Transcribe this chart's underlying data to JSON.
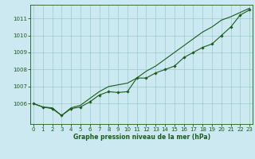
{
  "title": "Graphe pression niveau de la mer (hPa)",
  "background_color": "#cce8f0",
  "line_color": "#1a5c1a",
  "grid_color": "#99cccc",
  "x_values": [
    0,
    1,
    2,
    3,
    4,
    5,
    6,
    7,
    8,
    9,
    10,
    11,
    12,
    13,
    14,
    15,
    16,
    17,
    18,
    19,
    20,
    21,
    22,
    23
  ],
  "series_dots": [
    1006.0,
    1005.8,
    1005.7,
    1005.3,
    1005.7,
    1005.8,
    1006.1,
    1006.5,
    1006.7,
    1006.65,
    1006.7,
    1007.5,
    1007.5,
    1007.8,
    1008.0,
    1008.2,
    1008.7,
    1009.0,
    1009.3,
    1009.5,
    1010.0,
    1010.5,
    1011.2,
    1011.5
  ],
  "series_smooth": [
    1006.0,
    1005.8,
    1005.75,
    1005.3,
    1005.75,
    1005.9,
    1006.3,
    1006.7,
    1007.0,
    1007.1,
    1007.2,
    1007.5,
    1007.9,
    1008.2,
    1008.6,
    1009.0,
    1009.4,
    1009.8,
    1010.2,
    1010.5,
    1010.9,
    1011.1,
    1011.35,
    1011.6
  ],
  "ylim_min": 1004.8,
  "ylim_max": 1011.8,
  "yticks": [
    1006,
    1007,
    1008,
    1009,
    1010,
    1011
  ],
  "xticks": [
    0,
    1,
    2,
    3,
    4,
    5,
    6,
    7,
    8,
    9,
    10,
    11,
    12,
    13,
    14,
    15,
    16,
    17,
    18,
    19,
    20,
    21,
    22,
    23
  ],
  "title_fontsize": 5.5,
  "tick_fontsize": 5.0,
  "linewidth": 0.8,
  "markersize": 1.8
}
